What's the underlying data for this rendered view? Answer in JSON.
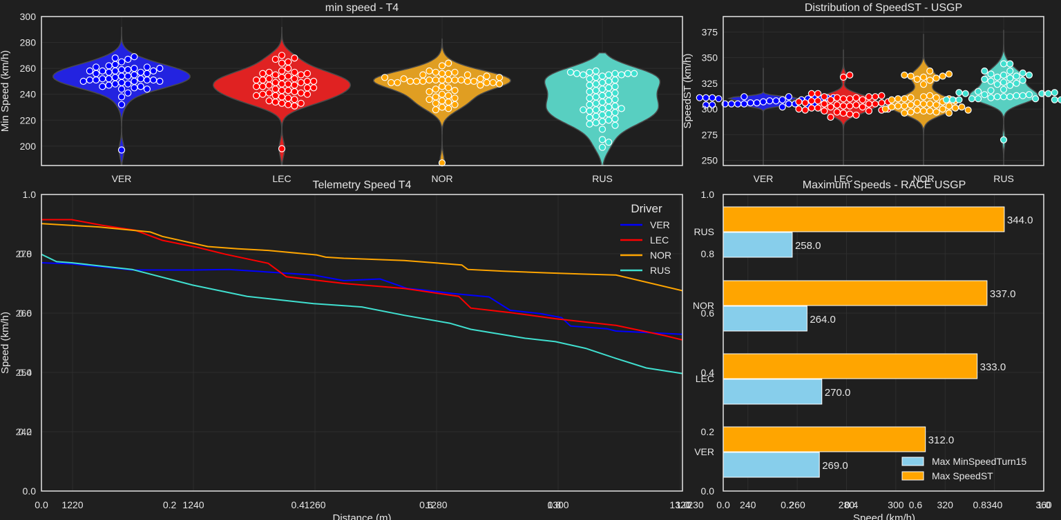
{
  "theme": {
    "background": "#1f1f1f",
    "grid": "#2e2e2e",
    "frame": "#e6e6e6",
    "driver_colors": {
      "VER": "#0000ff",
      "LEC": "#ff0000",
      "NOR": "#ffa500",
      "RUS": "#40e0d0"
    },
    "violin_fills": {
      "VER": "#2323e0",
      "LEC": "#e02222",
      "NOR": "#e09e22",
      "RUS": "#58cfc1"
    },
    "bar_colors": {
      "min": "#87ceeb",
      "max": "#ffa500"
    }
  },
  "chart_data": [
    {
      "id": "min-speed-violin",
      "type": "violin",
      "title": "min speed - T4",
      "xlabel": "",
      "ylabel": "Min Speed (km/h)",
      "categories": [
        "VER",
        "LEC",
        "NOR",
        "RUS"
      ],
      "yticks": [
        200,
        220,
        240,
        260,
        280,
        300
      ],
      "ylim": [
        185,
        300
      ],
      "grid": true,
      "series": [
        {
          "name": "VER",
          "center": 254,
          "kde_top": 292,
          "kde_bottom": 185,
          "width_frac": 0.95,
          "points": [
            254,
            252,
            251,
            250,
            251,
            250,
            249,
            248,
            247,
            246,
            245,
            244,
            246,
            248,
            250,
            251,
            252,
            253,
            252,
            251,
            261,
            258,
            258,
            256,
            260,
            259,
            257,
            262,
            263,
            268,
            265,
            267,
            269,
            258,
            255,
            254,
            257,
            256,
            260,
            259,
            258,
            261,
            244,
            241,
            238,
            232,
            197
          ]
        },
        {
          "name": "LEC",
          "center": 248,
          "kde_top": 292,
          "kde_bottom": 185,
          "width_frac": 0.95,
          "points": [
            249,
            248,
            247,
            246,
            245,
            244,
            243,
            242,
            241,
            240,
            239,
            238,
            237,
            236,
            235,
            234,
            233,
            232,
            231,
            250,
            251,
            252,
            253,
            254,
            255,
            256,
            257,
            258,
            246,
            245,
            247,
            248,
            249,
            250,
            251,
            252,
            267,
            265,
            268,
            270,
            264,
            260,
            257,
            256,
            255,
            241,
            243,
            240,
            239,
            233,
            198
          ]
        },
        {
          "name": "NOR",
          "center": 251,
          "kde_top": 283,
          "kde_bottom": 185,
          "width_frac": 0.95,
          "points": [
            251,
            251,
            251,
            250,
            249,
            249,
            250,
            250,
            249,
            249,
            250,
            250,
            251,
            251,
            251,
            255,
            257,
            256,
            258,
            252,
            253,
            254,
            255,
            256,
            257,
            252,
            253,
            248,
            247,
            246,
            245,
            244,
            243,
            242,
            240,
            239,
            238,
            237,
            236,
            235,
            234,
            233,
            232,
            230,
            229,
            228,
            262,
            264,
            187
          ]
        },
        {
          "name": "RUS",
          "center": 244,
          "kde_top": 272,
          "kde_bottom": 185,
          "width_frac": 0.8,
          "points": [
            256,
            256,
            255,
            255,
            256,
            257,
            258,
            257,
            256,
            255,
            254,
            253,
            252,
            251,
            250,
            249,
            248,
            247,
            246,
            245,
            244,
            243,
            242,
            241,
            240,
            239,
            238,
            237,
            236,
            235,
            234,
            233,
            232,
            231,
            230,
            229,
            228,
            227,
            226,
            225,
            224,
            223,
            222,
            221,
            220,
            219,
            218,
            217,
            216,
            229,
            228,
            213,
            205,
            203,
            199
          ]
        }
      ]
    },
    {
      "id": "speedst-violin",
      "type": "violin",
      "title": "Distribution of SpeedST - USGP",
      "xlabel": "",
      "ylabel": "SpeedST (km/h)",
      "categories": [
        "VER",
        "LEC",
        "NOR",
        "RUS"
      ],
      "yticks": [
        250,
        275,
        300,
        325,
        350,
        375
      ],
      "ylim": [
        245,
        390
      ],
      "grid": true,
      "series": [
        {
          "name": "VER",
          "center": 307,
          "kde_top": 340,
          "kde_bottom": 245,
          "points": [
            311,
            311,
            311,
            311,
            309,
            308,
            310,
            310,
            311,
            312,
            305,
            305,
            305,
            305,
            303,
            302,
            304,
            304,
            305,
            306,
            307,
            308,
            309,
            310,
            306,
            304,
            305,
            312,
            311
          ]
        },
        {
          "name": "LEC",
          "center": 303,
          "kde_top": 358,
          "kde_bottom": 245,
          "points": [
            333,
            331,
            315,
            315,
            313,
            312,
            312,
            311,
            310,
            309,
            308,
            308,
            307,
            307,
            306,
            306,
            305,
            305,
            304,
            304,
            303,
            303,
            302,
            302,
            301,
            300,
            300,
            299,
            299,
            298,
            298,
            297,
            296,
            295,
            294,
            292,
            310,
            311,
            312,
            309,
            305,
            301
          ]
        },
        {
          "name": "NOR",
          "center": 305,
          "kde_top": 373,
          "kde_bottom": 245,
          "points": [
            337,
            334,
            333,
            332,
            332,
            331,
            330,
            329,
            328,
            324,
            313,
            312,
            311,
            311,
            310,
            310,
            309,
            308,
            307,
            306,
            305,
            305,
            304,
            304,
            303,
            303,
            302,
            302,
            301,
            300,
            299,
            299,
            298,
            298,
            297,
            297,
            296,
            296,
            310,
            303,
            300
          ]
        },
        {
          "name": "RUS",
          "center": 312,
          "kde_top": 377,
          "kde_bottom": 245,
          "points": [
            344,
            344,
            337,
            337,
            335,
            334,
            333,
            333,
            332,
            331,
            330,
            329,
            328,
            327,
            326,
            325,
            324,
            323,
            319,
            318,
            317,
            316,
            316,
            315,
            315,
            315,
            314,
            314,
            313,
            312,
            312,
            311,
            310,
            310,
            310,
            309,
            309,
            309,
            309,
            309,
            309,
            313,
            312,
            270
          ]
        }
      ]
    },
    {
      "id": "telemetry-line",
      "type": "line",
      "title": "Telemetry Speed T4",
      "xlabel": "Distance (m)",
      "ylabel": "Speed (km/h)",
      "xlim": [
        1210,
        1320
      ],
      "ylim": [
        230,
        283
      ],
      "xticks_primary": [
        "1220",
        "1240",
        "1260",
        "1280",
        "1300",
        "1320"
      ],
      "xticks_secondary": [
        "0.0",
        "0.2",
        "0.4",
        "0.6",
        "0.8",
        "1.0"
      ],
      "yticks_overlap": [
        "270",
        "260",
        "250",
        "240"
      ],
      "yticks_secondary": [
        "0.0",
        "0.2",
        "0.4",
        "0.6",
        "0.8",
        "1.0"
      ],
      "yticks_secondary_overlap": [
        "0.8",
        "0.6",
        "0.4",
        "0.2"
      ],
      "grid": true,
      "legend": {
        "title": "Driver",
        "position": "top-right",
        "entries": [
          "VER",
          "LEC",
          "NOR",
          "RUS"
        ]
      },
      "series": [
        {
          "name": "VER",
          "x": [
            1210,
            1220,
            1240,
            1260,
            1272,
            1289,
            1300,
            1303,
            1305,
            1310,
            1322,
            1331,
            1335,
            1346,
            1358,
            1365,
            1375,
            1382,
            1385,
            1397,
            1400,
            1422
          ],
          "y": [
            270.8,
            270.6,
            269.5,
            269.5,
            269.6,
            269.0,
            268.6,
            268.3,
            268.1,
            267.6,
            267.9,
            266.2,
            266.0,
            265.3,
            264.7,
            262.3,
            261.7,
            261.0,
            259.5,
            259.0,
            258.6,
            258.0
          ]
        },
        {
          "name": "LEC",
          "x": [
            1210,
            1220,
            1230,
            1241,
            1250,
            1262,
            1271,
            1285,
            1291,
            1310,
            1330,
            1348,
            1352,
            1365,
            1380,
            1400,
            1416,
            1422
          ],
          "y": [
            278.5,
            278.5,
            277.5,
            276.6,
            274.8,
            273.5,
            272.3,
            270.7,
            268.3,
            267.1,
            266.2,
            264.8,
            262.7,
            261.9,
            260.8,
            259.6,
            257.8,
            257.0
          ]
        },
        {
          "name": "NOR",
          "x": [
            1210,
            1229,
            1246,
            1250,
            1265,
            1275,
            1285,
            1301,
            1304,
            1310,
            1320,
            1330,
            1349,
            1351,
            1363,
            1377,
            1388,
            1400,
            1422
          ],
          "y": [
            277.8,
            277.2,
            276.3,
            275.5,
            273.7,
            273.3,
            273.0,
            272.2,
            271.8,
            271.6,
            271.4,
            271.2,
            270.4,
            269.6,
            269.3,
            269.0,
            268.8,
            268.6,
            265.8
          ]
        },
        {
          "name": "RUS",
          "x": [
            1210,
            1215,
            1220,
            1240,
            1260,
            1278,
            1300,
            1316,
            1330,
            1345,
            1352,
            1370,
            1380,
            1390,
            1400,
            1410,
            1422
          ],
          "y": [
            272.3,
            271.0,
            270.8,
            269.6,
            266.8,
            264.8,
            263.5,
            262.9,
            261.4,
            260.0,
            258.9,
            257.3,
            256.7,
            255.5,
            253.7,
            252.0,
            251.0
          ]
        }
      ]
    },
    {
      "id": "max-speeds-bar",
      "type": "bar",
      "orientation": "horizontal",
      "title": "Maximum Speeds - RACE USGP",
      "xlabel": "Speed (km/h)",
      "ylabel": "",
      "categories": [
        "VER",
        "LEC",
        "NOR",
        "RUS"
      ],
      "xlim": [
        230,
        360
      ],
      "xticks_primary": [
        "240",
        "260",
        "280",
        "300",
        "320",
        "340",
        "360"
      ],
      "xticks_secondary": [
        "0.0",
        "0.2",
        "0.4",
        "0.6",
        "0.8",
        "1.0"
      ],
      "yticks_secondary": [
        "0.0",
        "0.2",
        "0.4",
        "0.6",
        "0.8",
        "1.0"
      ],
      "left_edge_label": "230",
      "grid": true,
      "legend": {
        "position": "bottom-right",
        "entries": [
          "Max MinSpeedTurn15",
          "Max SpeedST"
        ]
      },
      "series": [
        {
          "name": "Max MinSpeedTurn15",
          "values": [
            269.0,
            270.0,
            264.0,
            258.0
          ],
          "labels": [
            "269.0",
            "270.0",
            "264.0",
            "258.0"
          ]
        },
        {
          "name": "Max SpeedST",
          "values": [
            312.0,
            333.0,
            337.0,
            344.0
          ],
          "labels": [
            "312.0",
            "333.0",
            "337.0",
            "344.0"
          ]
        }
      ]
    }
  ]
}
